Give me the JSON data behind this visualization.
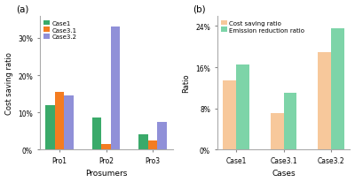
{
  "chart_a": {
    "title": "(a)",
    "prosumers": [
      "Pro1",
      "Pro2",
      "Pro3"
    ],
    "cases": [
      "Case1",
      "Case3.1",
      "Case3.2"
    ],
    "colors": [
      "#3aaa6a",
      "#f47c20",
      "#9090d8"
    ],
    "values": {
      "Case1": [
        12.0,
        8.5,
        4.0
      ],
      "Case3.1": [
        15.5,
        1.5,
        2.5
      ],
      "Case3.2": [
        14.5,
        33.0,
        7.5
      ]
    },
    "ylabel": "Cost saving ratio",
    "xlabel": "Prosumers",
    "ylim": [
      0,
      36
    ],
    "yticks": [
      0,
      10,
      20,
      30
    ]
  },
  "chart_b": {
    "title": "(b)",
    "cases": [
      "Case1",
      "Case3.1",
      "Case3.2"
    ],
    "series": [
      "Cost saving ratio",
      "Emission reduction ratio"
    ],
    "colors": [
      "#f7c89b",
      "#7dd4a8"
    ],
    "values": {
      "Cost saving ratio": [
        13.5,
        7.0,
        19.0
      ],
      "Emission reduction ratio": [
        16.5,
        11.0,
        23.5
      ]
    },
    "ylabel": "Ratio",
    "xlabel": "Cases",
    "ylim": [
      0,
      26
    ],
    "yticks": [
      0,
      8,
      16,
      24
    ]
  }
}
